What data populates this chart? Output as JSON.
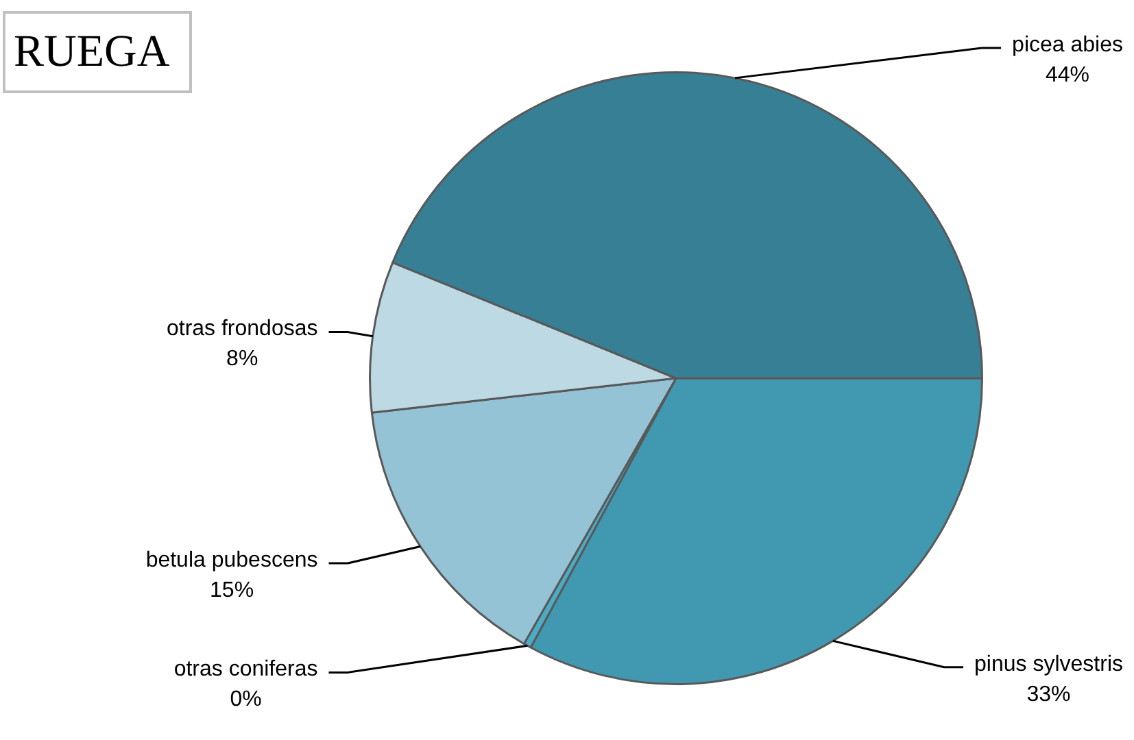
{
  "chart_data": {
    "type": "pie",
    "title": "RUEGA",
    "categories": [
      "pinus sylvestris",
      "otras coniferas",
      "betula pubescens",
      "otras frondosas",
      "picea abies"
    ],
    "values": [
      33,
      0.4,
      15,
      8,
      44
    ],
    "value_labels": [
      "33%",
      "0%",
      "15%",
      "8%",
      "44%"
    ],
    "colors": [
      "#4199b1",
      "#4bacc6",
      "#93c3d5",
      "#bdd9e4",
      "#367f95"
    ],
    "legend": false
  }
}
